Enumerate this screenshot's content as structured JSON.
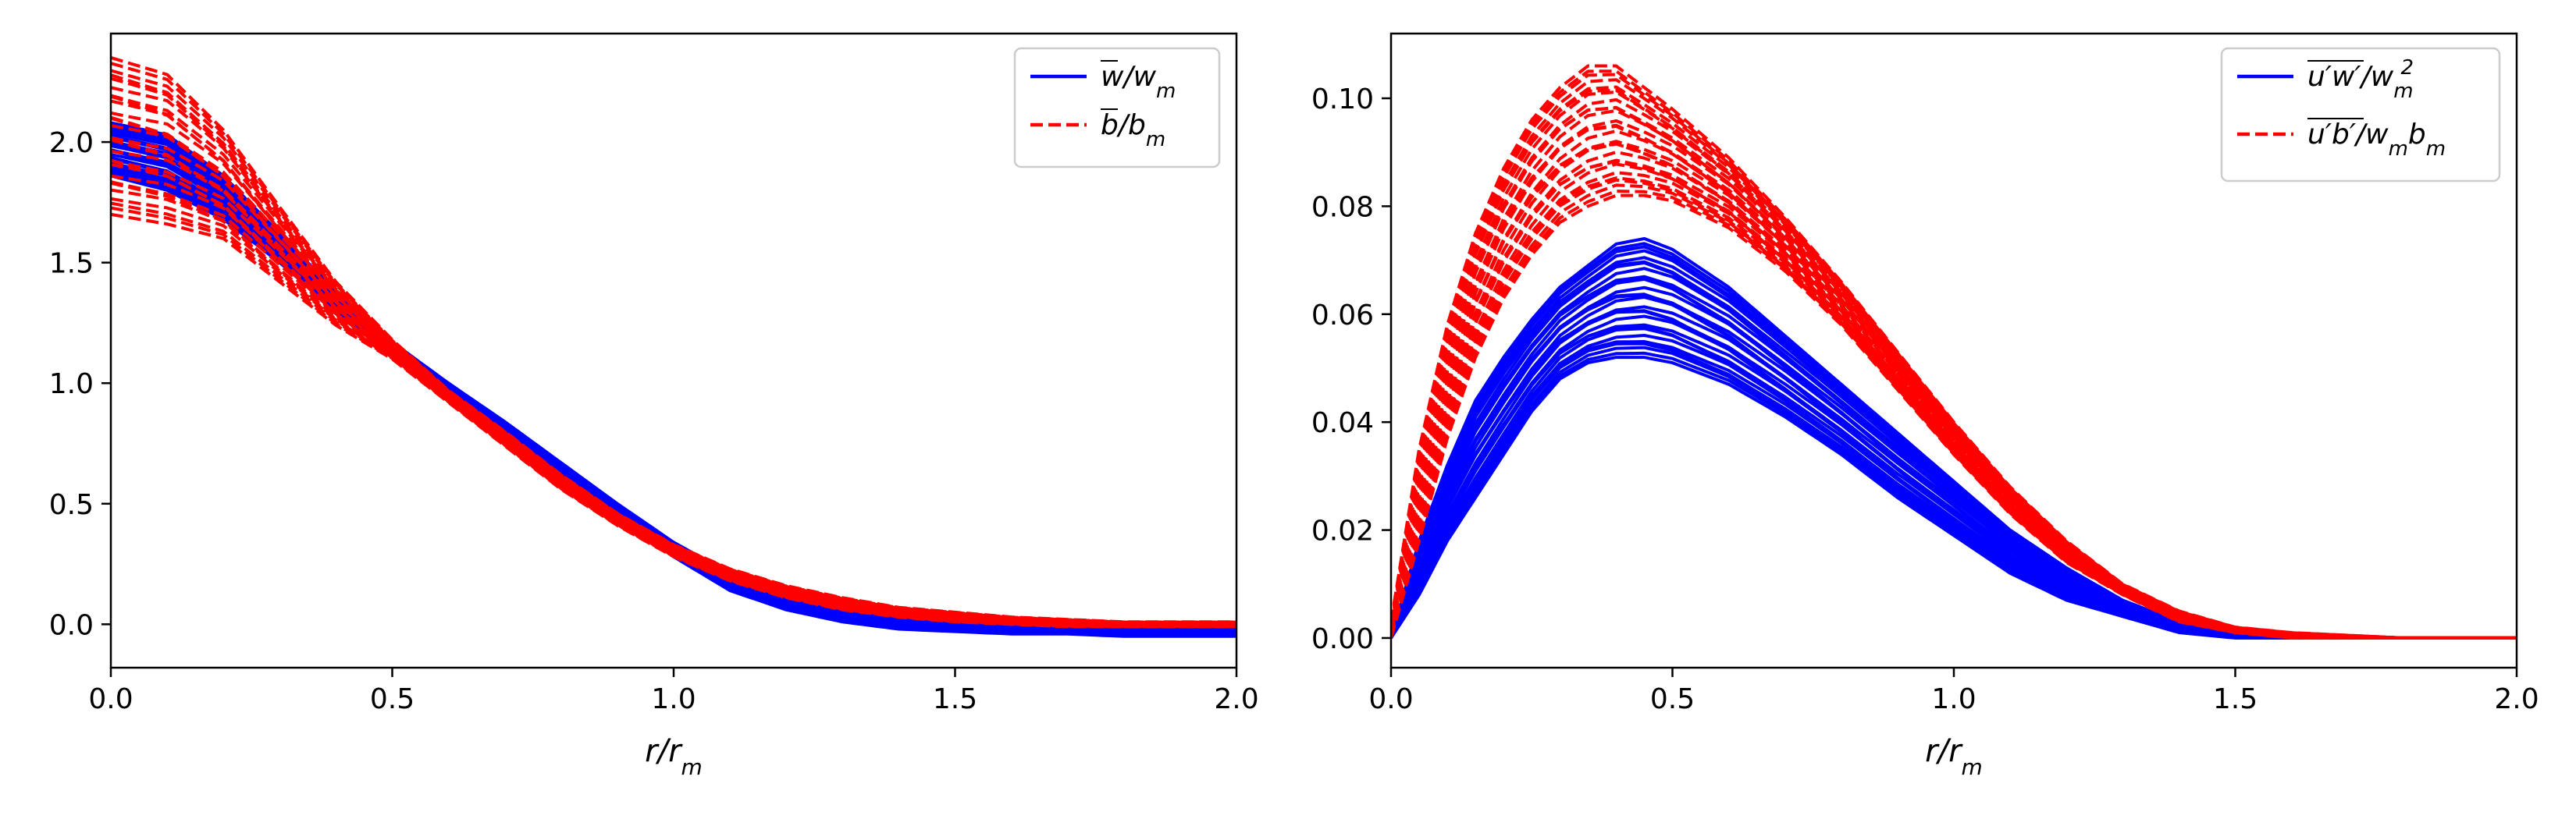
{
  "chart_data": [
    {
      "type": "line",
      "title": "",
      "xlabel": "r/r_m",
      "ylabel": "",
      "xlim": [
        0.0,
        2.0
      ],
      "ylim": [
        -0.18,
        2.45
      ],
      "xticks": [
        0.0,
        0.5,
        1.0,
        1.5,
        2.0
      ],
      "xtick_labels": [
        "0.0",
        "0.5",
        "1.0",
        "1.5",
        "2.0"
      ],
      "yticks": [
        0.0,
        0.5,
        1.0,
        1.5,
        2.0
      ],
      "ytick_labels": [
        "0.0",
        "0.5",
        "1.0",
        "1.5",
        "2.0"
      ],
      "grid": false,
      "legend_position": "top-right",
      "series": [
        {
          "name": "w̄/w_m",
          "label_text": "w",
          "label_suffix": "/w",
          "label_sub": "m",
          "color": "#0000ff",
          "style": "solid",
          "x": [
            0.0,
            0.1,
            0.2,
            0.3,
            0.4,
            0.5,
            0.6,
            0.7,
            0.8,
            0.9,
            1.0,
            1.1,
            1.2,
            1.3,
            1.4,
            1.5,
            1.6,
            1.7,
            1.8,
            1.9,
            2.0
          ],
          "y_upper": [
            2.08,
            2.03,
            1.86,
            1.62,
            1.38,
            1.17,
            1.0,
            0.84,
            0.67,
            0.5,
            0.34,
            0.21,
            0.12,
            0.06,
            0.03,
            0.01,
            0.0,
            0.0,
            0.0,
            0.0,
            -0.01
          ],
          "y_lower": [
            1.86,
            1.8,
            1.68,
            1.5,
            1.3,
            1.12,
            0.96,
            0.8,
            0.62,
            0.45,
            0.28,
            0.14,
            0.06,
            0.01,
            -0.02,
            -0.03,
            -0.04,
            -0.04,
            -0.05,
            -0.05,
            -0.05
          ]
        },
        {
          "name": "b̄/b_m",
          "label_text": "b",
          "label_suffix": "/b",
          "label_sub": "m",
          "color": "#ff0000",
          "style": "dashed",
          "x": [
            0.0,
            0.1,
            0.2,
            0.3,
            0.4,
            0.5,
            0.6,
            0.7,
            0.8,
            0.9,
            1.0,
            1.1,
            1.2,
            1.3,
            1.4,
            1.5,
            1.6,
            1.7,
            1.8,
            1.9,
            2.0
          ],
          "y_upper": [
            2.35,
            2.28,
            2.05,
            1.73,
            1.42,
            1.18,
            0.97,
            0.8,
            0.62,
            0.46,
            0.33,
            0.23,
            0.16,
            0.11,
            0.07,
            0.05,
            0.03,
            0.02,
            0.01,
            0.01,
            0.01
          ],
          "y_lower": [
            1.7,
            1.66,
            1.6,
            1.42,
            1.24,
            1.1,
            0.92,
            0.74,
            0.56,
            0.41,
            0.28,
            0.18,
            0.11,
            0.06,
            0.03,
            0.01,
            0.0,
            -0.01,
            -0.01,
            -0.01,
            -0.01
          ]
        }
      ]
    },
    {
      "type": "line",
      "title": "",
      "xlabel": "r/r_m",
      "ylabel": "",
      "xlim": [
        0.0,
        2.0
      ],
      "ylim": [
        -0.0055,
        0.112
      ],
      "xticks": [
        0.0,
        0.5,
        1.0,
        1.5,
        2.0
      ],
      "xtick_labels": [
        "0.0",
        "0.5",
        "1.0",
        "1.5",
        "2.0"
      ],
      "yticks": [
        0.0,
        0.02,
        0.04,
        0.06,
        0.08,
        0.1
      ],
      "ytick_labels": [
        "0.00",
        "0.02",
        "0.04",
        "0.06",
        "0.08",
        "0.10"
      ],
      "grid": false,
      "legend_position": "top-right",
      "series": [
        {
          "name": "u′w′/w_m²",
          "label_text": "u′w′",
          "label_suffix": "/w",
          "label_sub": "m",
          "label_sup": "2",
          "color": "#0000ff",
          "style": "solid",
          "x": [
            0.0,
            0.05,
            0.1,
            0.15,
            0.2,
            0.25,
            0.3,
            0.35,
            0.4,
            0.45,
            0.5,
            0.6,
            0.7,
            0.8,
            0.9,
            1.0,
            1.1,
            1.2,
            1.3,
            1.4,
            1.5,
            1.6,
            1.8,
            2.0
          ],
          "y_upper": [
            0.0,
            0.018,
            0.032,
            0.044,
            0.052,
            0.059,
            0.065,
            0.069,
            0.073,
            0.074,
            0.072,
            0.065,
            0.056,
            0.047,
            0.038,
            0.029,
            0.02,
            0.013,
            0.007,
            0.003,
            0.001,
            0.0,
            0.0,
            0.0
          ],
          "y_lower": [
            0.0,
            0.008,
            0.018,
            0.026,
            0.034,
            0.042,
            0.048,
            0.051,
            0.052,
            0.052,
            0.051,
            0.047,
            0.041,
            0.034,
            0.026,
            0.019,
            0.012,
            0.007,
            0.004,
            0.001,
            0.0,
            0.0,
            0.0,
            0.0
          ]
        },
        {
          "name": "u′b′/w_m b_m",
          "label_text": "u′b′",
          "label_suffix": "/w",
          "label_sub": "m",
          "label_suffix2": "b",
          "label_sub2": "m",
          "color": "#ff0000",
          "style": "dashed",
          "x": [
            0.0,
            0.05,
            0.1,
            0.15,
            0.2,
            0.25,
            0.3,
            0.35,
            0.4,
            0.45,
            0.5,
            0.6,
            0.7,
            0.8,
            0.9,
            1.0,
            1.1,
            1.2,
            1.3,
            1.4,
            1.5,
            1.6,
            1.8,
            2.0
          ],
          "y_upper": [
            0.003,
            0.035,
            0.058,
            0.075,
            0.087,
            0.096,
            0.102,
            0.106,
            0.106,
            0.102,
            0.098,
            0.089,
            0.078,
            0.066,
            0.053,
            0.04,
            0.028,
            0.018,
            0.01,
            0.005,
            0.002,
            0.001,
            0.0,
            0.0
          ],
          "y_lower": [
            0.0,
            0.018,
            0.037,
            0.052,
            0.063,
            0.071,
            0.077,
            0.08,
            0.082,
            0.082,
            0.081,
            0.076,
            0.068,
            0.058,
            0.046,
            0.034,
            0.023,
            0.014,
            0.008,
            0.003,
            0.001,
            0.0,
            0.0,
            0.0
          ]
        }
      ]
    }
  ]
}
